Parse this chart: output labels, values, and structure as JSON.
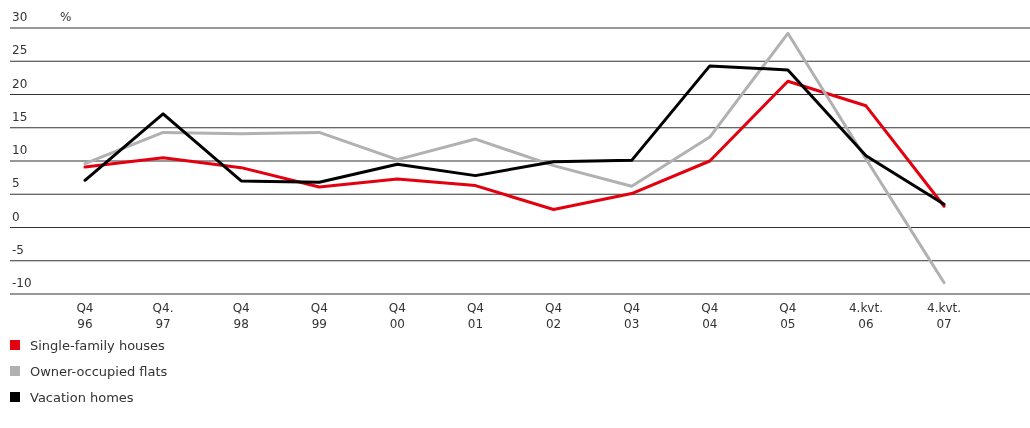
{
  "chart_data": {
    "type": "line",
    "ylabel": "%",
    "categories": [
      "Q4\n96",
      "Q4.\n97",
      "Q4\n98",
      "Q4\n99",
      "Q4\n00",
      "Q4\n01",
      "Q4\n02",
      "Q4\n03",
      "Q4\n04",
      "Q4\n05",
      "4.kvt.\n06",
      "4.kvt.\n07"
    ],
    "series": [
      {
        "name": "Single-family houses",
        "color": "#e3000f",
        "values": [
          9.1,
          10.5,
          9.0,
          6.1,
          7.3,
          6.3,
          2.7,
          5.1,
          10.0,
          22.0,
          18.3,
          3.2
        ]
      },
      {
        "name": "Owner-occupied flats",
        "color": "#b1b1b3",
        "values": [
          9.6,
          14.3,
          14.1,
          14.3,
          10.2,
          13.3,
          9.3,
          6.2,
          13.6,
          29.2,
          10.3,
          -8.3
        ]
      },
      {
        "name": "Vacation homes",
        "color": "#000000",
        "values": [
          7.1,
          17.1,
          7.0,
          6.8,
          9.5,
          7.8,
          9.9,
          10.1,
          24.3,
          23.7,
          10.8,
          3.5
        ]
      }
    ],
    "ylim": [
      -10,
      30
    ],
    "yticks": [
      -10,
      -5,
      0,
      5,
      10,
      15,
      20,
      25,
      30
    ],
    "grid": "y",
    "legend": "bottom left",
    "marker": "none",
    "line_style": "solid"
  }
}
